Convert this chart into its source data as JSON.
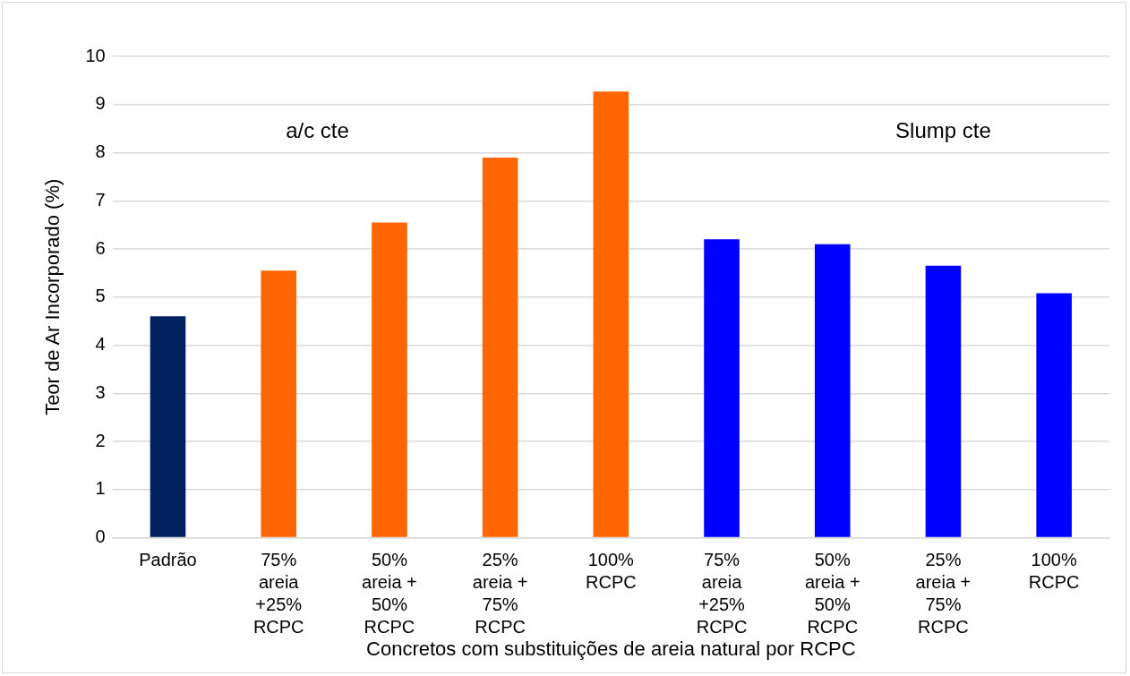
{
  "chart_data": {
    "type": "bar",
    "xlabel": "Concretos com substituições de areia natural por RCPC",
    "ylabel": "Teor de Ar Incorporado (%)",
    "categories": [
      "Padrão",
      "75% areia +25% RCPC",
      "50% areia + 50% RCPC",
      "25% areia + 75% RCPC",
      "100% RCPC",
      "75% areia +25% RCPC",
      "50% areia + 50% RCPC",
      "25% areia + 75% RCPC",
      "100% RCPC"
    ],
    "values": [
      4.6,
      5.55,
      6.55,
      7.9,
      9.27,
      6.2,
      6.1,
      5.65,
      5.08
    ],
    "colors": [
      "#002060",
      "#ff6600",
      "#ff6600",
      "#ff6600",
      "#ff6600",
      "#0000ff",
      "#0000ff",
      "#0000ff",
      "#0000ff"
    ],
    "ylim": [
      0,
      10
    ],
    "yticks": [
      0,
      1,
      2,
      3,
      4,
      5,
      6,
      7,
      8,
      9,
      10
    ],
    "grid": "y",
    "legend": false,
    "annotations": [
      "a/c cte",
      "Slump cte"
    ]
  }
}
